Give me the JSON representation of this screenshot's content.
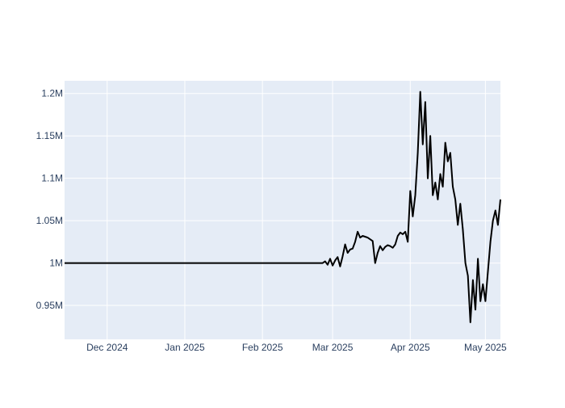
{
  "chart_data": {
    "type": "line",
    "title": "",
    "xlabel": "",
    "ylabel": "",
    "grid": true,
    "colors": {
      "background": "#e5ecf6",
      "grid": "#ffffff",
      "line": "#000000",
      "tick_text": "#2a3f5f"
    },
    "x_range": [
      "2024-11-14",
      "2025-05-07"
    ],
    "y_range": [
      910000,
      1215000
    ],
    "x_ticks": [
      {
        "date": "2024-12-01",
        "label": "Dec 2024"
      },
      {
        "date": "2025-01-01",
        "label": "Jan 2025"
      },
      {
        "date": "2025-02-01",
        "label": "Feb 2025"
      },
      {
        "date": "2025-03-01",
        "label": "Mar 2025"
      },
      {
        "date": "2025-04-01",
        "label": "Apr 2025"
      },
      {
        "date": "2025-05-01",
        "label": "May 2025"
      }
    ],
    "y_ticks": [
      {
        "value": 950000,
        "label": "0.95M"
      },
      {
        "value": 1000000,
        "label": "1M"
      },
      {
        "value": 1050000,
        "label": "1.05M"
      },
      {
        "value": 1100000,
        "label": "1.1M"
      },
      {
        "value": 1150000,
        "label": "1.15M"
      },
      {
        "value": 1200000,
        "label": "1.2M"
      }
    ],
    "series": [
      {
        "points": [
          [
            "2024-11-14",
            1000000
          ],
          [
            "2024-12-15",
            1000000
          ],
          [
            "2025-01-15",
            1000000
          ],
          [
            "2025-02-15",
            1000000
          ],
          [
            "2025-02-25",
            1000000
          ],
          [
            "2025-02-26",
            1002000
          ],
          [
            "2025-02-27",
            998000
          ],
          [
            "2025-02-28",
            1005000
          ],
          [
            "2025-03-01",
            997000
          ],
          [
            "2025-03-02",
            1003000
          ],
          [
            "2025-03-03",
            1007000
          ],
          [
            "2025-03-04",
            996000
          ],
          [
            "2025-03-05",
            1008000
          ],
          [
            "2025-03-06",
            1022000
          ],
          [
            "2025-03-07",
            1012000
          ],
          [
            "2025-03-08",
            1016000
          ],
          [
            "2025-03-09",
            1017000
          ],
          [
            "2025-03-10",
            1025000
          ],
          [
            "2025-03-11",
            1037000
          ],
          [
            "2025-03-12",
            1030000
          ],
          [
            "2025-03-13",
            1032000
          ],
          [
            "2025-03-14",
            1031000
          ],
          [
            "2025-03-15",
            1030000
          ],
          [
            "2025-03-16",
            1028000
          ],
          [
            "2025-03-17",
            1026000
          ],
          [
            "2025-03-18",
            1000000
          ],
          [
            "2025-03-19",
            1012000
          ],
          [
            "2025-03-20",
            1020000
          ],
          [
            "2025-03-21",
            1015000
          ],
          [
            "2025-03-22",
            1019000
          ],
          [
            "2025-03-23",
            1021000
          ],
          [
            "2025-03-24",
            1020000
          ],
          [
            "2025-03-25",
            1018000
          ],
          [
            "2025-03-26",
            1022000
          ],
          [
            "2025-03-27",
            1032000
          ],
          [
            "2025-03-28",
            1036000
          ],
          [
            "2025-03-29",
            1034000
          ],
          [
            "2025-03-30",
            1037000
          ],
          [
            "2025-03-31",
            1025000
          ],
          [
            "2025-04-01",
            1085000
          ],
          [
            "2025-04-02",
            1055000
          ],
          [
            "2025-04-03",
            1080000
          ],
          [
            "2025-04-04",
            1130000
          ],
          [
            "2025-04-05",
            1202000
          ],
          [
            "2025-04-06",
            1140000
          ],
          [
            "2025-04-07",
            1190000
          ],
          [
            "2025-04-08",
            1100000
          ],
          [
            "2025-04-09",
            1150000
          ],
          [
            "2025-04-10",
            1080000
          ],
          [
            "2025-04-11",
            1095000
          ],
          [
            "2025-04-12",
            1075000
          ],
          [
            "2025-04-13",
            1105000
          ],
          [
            "2025-04-14",
            1090000
          ],
          [
            "2025-04-15",
            1142000
          ],
          [
            "2025-04-16",
            1120000
          ],
          [
            "2025-04-17",
            1130000
          ],
          [
            "2025-04-18",
            1090000
          ],
          [
            "2025-04-19",
            1075000
          ],
          [
            "2025-04-20",
            1045000
          ],
          [
            "2025-04-21",
            1070000
          ],
          [
            "2025-04-22",
            1040000
          ],
          [
            "2025-04-23",
            1000000
          ],
          [
            "2025-04-24",
            985000
          ],
          [
            "2025-04-25",
            930000
          ],
          [
            "2025-04-26",
            980000
          ],
          [
            "2025-04-27",
            945000
          ],
          [
            "2025-04-28",
            1005000
          ],
          [
            "2025-04-29",
            955000
          ],
          [
            "2025-04-30",
            975000
          ],
          [
            "2025-05-01",
            955000
          ],
          [
            "2025-05-02",
            990000
          ],
          [
            "2025-05-03",
            1025000
          ],
          [
            "2025-05-04",
            1050000
          ],
          [
            "2025-05-05",
            1062000
          ],
          [
            "2025-05-06",
            1045000
          ],
          [
            "2025-05-07",
            1075000
          ]
        ]
      }
    ]
  }
}
